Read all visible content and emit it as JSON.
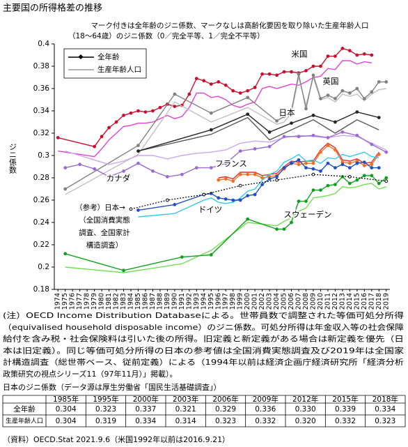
{
  "title": "主要国の所得格差の推移",
  "chart_data": {
    "type": "line",
    "subtitle": [
      "マーク付きは全年齢のジニ係数、マークなしは高齢化要因を取り除いた生産年齢人口",
      "（18～64歳）のジニ係数（0／完全平等、1／完全不平等）"
    ],
    "ylabel": "ジニ係数",
    "xlim": [
      1973.5,
      2019.5
    ],
    "xticks": [
      1974,
      1975,
      1976,
      1977,
      1978,
      1979,
      1980,
      1981,
      1982,
      1983,
      1984,
      1985,
      1986,
      1987,
      1988,
      1989,
      1990,
      1991,
      1992,
      1993,
      1994,
      1995,
      1996,
      1997,
      1998,
      1999,
      2000,
      2001,
      2002,
      2003,
      2004,
      2005,
      2006,
      2007,
      2008,
      2009,
      2010,
      2011,
      2012,
      2013,
      2014,
      2015,
      2016,
      2017,
      2018,
      2019
    ],
    "ylim": [
      0.18,
      0.4
    ],
    "yticks": [
      0.18,
      0.2,
      0.22,
      0.24,
      0.26,
      0.28,
      0.3,
      0.32,
      0.34,
      0.36,
      0.38,
      0.4
    ],
    "legend": [
      {
        "name": "全年齢",
        "color": "#000000"
      },
      {
        "name": "生産年齢人口",
        "color": "#999999"
      }
    ],
    "countries": [
      {
        "name": "米国",
        "all": {
          "color": "#c8102e",
          "x": [
            1974,
            1979,
            1980,
            1981,
            1982,
            1983,
            1984,
            1985,
            1986,
            1987,
            1988,
            1989,
            1990,
            1991,
            1992,
            1993,
            1994,
            1995,
            1996,
            1997,
            1998,
            1999,
            2000,
            2001,
            2002,
            2003,
            2004,
            2005,
            2006,
            2007,
            2008,
            2009,
            2010,
            2011,
            2012,
            2013,
            2014,
            2015,
            2016,
            2017
          ],
          "values": [
            0.316,
            0.308,
            0.317,
            0.325,
            0.33,
            0.336,
            0.338,
            0.34,
            0.339,
            0.34,
            0.343,
            0.346,
            0.344,
            0.345,
            0.355,
            0.369,
            0.367,
            0.364,
            0.366,
            0.363,
            0.358,
            0.356,
            0.358,
            0.361,
            0.373,
            0.373,
            0.372,
            0.375,
            0.375,
            0.374,
            0.376,
            0.38,
            0.38,
            0.389,
            0.389,
            0.396,
            0.394,
            0.39,
            0.391,
            0.39
          ]
        },
        "working": {
          "color": "#e040d8",
          "x": [
            1974,
            1979,
            1980,
            1981,
            1982,
            1983,
            1984,
            1985,
            1986,
            1987,
            1988,
            1989,
            1990,
            1991,
            1992,
            1993,
            1994,
            1995,
            1996,
            1997,
            1998,
            1999,
            2000,
            2001,
            2002,
            2003,
            2004,
            2005,
            2006,
            2007,
            2008,
            2009,
            2010,
            2011,
            2012,
            2013,
            2014,
            2015,
            2016,
            2017
          ],
          "values": [
            0.304,
            0.299,
            0.306,
            0.314,
            0.32,
            0.326,
            0.327,
            0.329,
            0.329,
            0.33,
            0.333,
            0.336,
            0.333,
            0.335,
            0.343,
            0.356,
            0.356,
            0.352,
            0.353,
            0.35,
            0.345,
            0.343,
            0.346,
            0.348,
            0.36,
            0.362,
            0.36,
            0.362,
            0.364,
            0.363,
            0.366,
            0.37,
            0.371,
            0.378,
            0.377,
            0.385,
            0.385,
            0.382,
            0.384,
            0.383
          ]
        }
      },
      {
        "name": "英国",
        "all": {
          "color": "#808080",
          "x": [
            1975,
            1985,
            1990,
            1995,
            2000,
            2004,
            2005,
            2006,
            2007,
            2008,
            2009,
            2010,
            2011,
            2012,
            2013,
            2014,
            2015,
            2016,
            2017,
            2018,
            2019
          ],
          "values": [
            0.27,
            0.309,
            0.355,
            0.338,
            0.352,
            0.331,
            0.335,
            0.34,
            0.373,
            0.342,
            0.372,
            0.351,
            0.354,
            0.351,
            0.358,
            0.356,
            0.36,
            0.351,
            0.357,
            0.366,
            0.366
          ]
        },
        "working": {
          "color": "#c0c0c0",
          "x": [
            1975,
            1985,
            1990,
            1995,
            2000,
            2004,
            2005,
            2006,
            2007,
            2008,
            2009,
            2010,
            2011,
            2012,
            2013,
            2014,
            2015,
            2016,
            2017,
            2018,
            2019
          ],
          "values": [
            0.265,
            0.301,
            0.348,
            0.33,
            0.343,
            0.328,
            0.33,
            0.338,
            0.37,
            0.345,
            0.37,
            0.35,
            0.352,
            0.348,
            0.355,
            0.353,
            0.355,
            0.349,
            0.355,
            0.359,
            0.36
          ]
        }
      },
      {
        "name": "日本",
        "all": {
          "color": "#262626",
          "x": [
            1985,
            1995,
            2000,
            2003,
            2006,
            2009,
            2012,
            2015,
            2018
          ],
          "values": [
            0.304,
            0.323,
            0.337,
            0.321,
            0.329,
            0.336,
            0.33,
            0.339,
            0.334
          ]
        },
        "working": {
          "color": "#595959",
          "x": [
            1985,
            1995,
            2000,
            2003,
            2006,
            2009,
            2012,
            2015,
            2018
          ],
          "values": [
            0.304,
            0.319,
            0.334,
            0.314,
            0.323,
            0.332,
            0.32,
            0.332,
            0.323
          ]
        }
      },
      {
        "name": "フランス",
        "all": {
          "color": "#f07020",
          "x": [
            1996,
            1997,
            1998,
            1999,
            2000,
            2001,
            2002,
            2003,
            2004,
            2005,
            2006,
            2007,
            2008,
            2009,
            2010,
            2011,
            2012,
            2013,
            2014,
            2015,
            2016,
            2017,
            2018
          ],
          "values": [
            0.278,
            0.279,
            0.277,
            0.283,
            0.283,
            0.283,
            0.28,
            0.281,
            0.282,
            0.288,
            0.293,
            0.292,
            0.293,
            0.293,
            0.303,
            0.309,
            0.305,
            0.294,
            0.293,
            0.295,
            0.291,
            0.292,
            0.301
          ]
        },
        "working": {
          "color": "#e03030",
          "x": [
            1996,
            1997,
            1998,
            1999,
            2000,
            2001,
            2002,
            2003,
            2004,
            2005,
            2006,
            2007,
            2008,
            2009,
            2010,
            2011,
            2012,
            2013,
            2014,
            2015,
            2016,
            2017,
            2018
          ],
          "values": [
            0.28,
            0.281,
            0.279,
            0.285,
            0.285,
            0.285,
            0.282,
            0.283,
            0.284,
            0.29,
            0.295,
            0.294,
            0.295,
            0.295,
            0.305,
            0.311,
            0.307,
            0.296,
            0.295,
            0.297,
            0.293,
            0.294,
            0.303
          ]
        }
      },
      {
        "name": "カナダ",
        "all": {
          "color": "#9a6bd0",
          "x": [
            1975,
            1977,
            1979,
            1981,
            1983,
            1985,
            1987,
            1989,
            1991,
            1993,
            1995,
            1997,
            1999,
            2001,
            2003,
            2005,
            2007,
            2009,
            2011,
            2013,
            2015,
            2017,
            2019
          ],
          "values": [
            0.289,
            0.292,
            0.288,
            0.281,
            0.286,
            0.293,
            0.286,
            0.281,
            0.283,
            0.289,
            0.289,
            0.293,
            0.304,
            0.306,
            0.308,
            0.317,
            0.317,
            0.318,
            0.316,
            0.321,
            0.318,
            0.31,
            0.303
          ]
        },
        "working": {
          "color": "#c8a6f0",
          "x": [
            1975,
            1977,
            1979,
            1981,
            1983,
            1985,
            1987,
            1989,
            1991,
            1993,
            1995,
            1997,
            1999,
            2001,
            2003,
            2005,
            2007,
            2009,
            2011,
            2013,
            2015,
            2017,
            2019
          ],
          "values": [
            0.304,
            0.3,
            0.296,
            0.292,
            0.295,
            0.3,
            0.3,
            0.297,
            0.3,
            0.302,
            0.303,
            0.305,
            0.311,
            0.313,
            0.312,
            0.316,
            0.318,
            0.317,
            0.316,
            0.318,
            0.317,
            0.311,
            0.305
          ]
        }
      },
      {
        "name": "ドイツ",
        "all": {
          "color": "#2050c0",
          "x": [
            1985,
            1990,
            1994,
            1995,
            1996,
            1997,
            1998,
            1999,
            2000,
            2001,
            2002,
            2003,
            2004,
            2005,
            2006,
            2007,
            2008,
            2009,
            2010,
            2011,
            2012,
            2013,
            2014,
            2015,
            2016,
            2017,
            2018
          ],
          "values": [
            0.251,
            0.256,
            0.265,
            0.266,
            0.262,
            0.261,
            0.26,
            0.26,
            0.264,
            0.265,
            0.274,
            0.279,
            0.281,
            0.289,
            0.293,
            0.296,
            0.289,
            0.288,
            0.286,
            0.293,
            0.289,
            0.292,
            0.289,
            0.293,
            0.294,
            0.289,
            0.289
          ]
        },
        "working": {
          "color": "#30c8f0",
          "x": [
            1985,
            1990,
            1994,
            1995,
            1996,
            1997,
            1998,
            1999,
            2000,
            2001,
            2002,
            2003,
            2004,
            2005,
            2006,
            2007,
            2008,
            2009,
            2010,
            2011,
            2012,
            2013,
            2014,
            2015,
            2016,
            2017,
            2018
          ],
          "values": [
            0.245,
            0.248,
            0.26,
            0.262,
            0.258,
            0.257,
            0.258,
            0.262,
            0.268,
            0.27,
            0.278,
            0.283,
            0.286,
            0.294,
            0.297,
            0.301,
            0.295,
            0.296,
            0.293,
            0.298,
            0.297,
            0.301,
            0.299,
            0.301,
            0.303,
            0.299,
            0.298
          ]
        }
      },
      {
        "name": "スウェーデン",
        "all": {
          "color": "#10a020",
          "x": [
            1975,
            1983,
            1991,
            1995,
            2000,
            2004,
            2005,
            2006,
            2007,
            2008,
            2009,
            2010,
            2011,
            2012,
            2013,
            2014,
            2015,
            2016,
            2017,
            2018,
            2019
          ],
          "values": [
            0.212,
            0.197,
            0.209,
            0.211,
            0.243,
            0.234,
            0.234,
            0.24,
            0.259,
            0.259,
            0.269,
            0.269,
            0.273,
            0.274,
            0.281,
            0.275,
            0.278,
            0.282,
            0.282,
            0.275,
            0.28
          ]
        },
        "working": {
          "color": "#70e050",
          "x": [
            1975,
            1983,
            1991,
            1995,
            2000,
            2004,
            2005,
            2006,
            2007,
            2008,
            2009,
            2010,
            2011,
            2012,
            2013,
            2014,
            2015,
            2016,
            2017,
            2018,
            2019
          ],
          "values": [
            0.2,
            0.195,
            0.203,
            0.215,
            0.24,
            0.237,
            0.241,
            0.244,
            0.25,
            0.253,
            0.262,
            0.263,
            0.264,
            0.266,
            0.272,
            0.271,
            0.272,
            0.274,
            0.275,
            0.27,
            0.272
          ]
        }
      }
    ],
    "reference": {
      "label": [
        "（参考）日本→",
        "（全国消費実態",
        "調査、全国家計",
        "構造調査）"
      ],
      "color": "#000000",
      "x": [
        1984,
        1989,
        1994,
        1999,
        2004,
        2009,
        2014,
        2019
      ],
      "values": [
        0.252,
        0.26,
        0.265,
        0.273,
        0.278,
        0.283,
        0.281,
        0.277
      ]
    }
  },
  "notes": [
    "(注）OECD Income Distribution Databaseによる。世帯員数で調整された等価可処分所得",
    "（equivalised household disposable income）のジニ係数。可処分所得は年金収入等の社会保障",
    "給付を含み税・社会保険料は引いた後の所得。旧定義と新定義がある場合は新定義を優先（日",
    "本は旧定義）。同じ等価可処分所得の日本の参考値は全国消費実態調査及び2019年は全国家",
    "計構造調査（総世帯ベース、従前定義）による（1994年以前は経済企画庁経済研究所「経済分析",
    "政策研究の視点シリーズ11（97年11月）」掲載）。"
  ],
  "table": {
    "title": "日本のジニ係数（データ源は厚生労働省「国民生活基礎調査」）",
    "columns": [
      "1985年",
      "1995年",
      "2000年",
      "2003年",
      "2006年",
      "2009年",
      "2012年",
      "2015年",
      "2018年"
    ],
    "rows": [
      {
        "label": "全年齢",
        "cells": [
          "0.304",
          "0.323",
          "0.337",
          "0.321",
          "0.329",
          "0.336",
          "0.330",
          "0.339",
          "0.334"
        ]
      },
      {
        "label": "生産年齢人口",
        "cells": [
          "0.304",
          "0.319",
          "0.334",
          "0.314",
          "0.323",
          "0.332",
          "0.320",
          "0.332",
          "0.323"
        ]
      }
    ]
  },
  "source": "（資料）OECD.Stat 2021.9.6（米国1992年以前は2016.9.21）"
}
